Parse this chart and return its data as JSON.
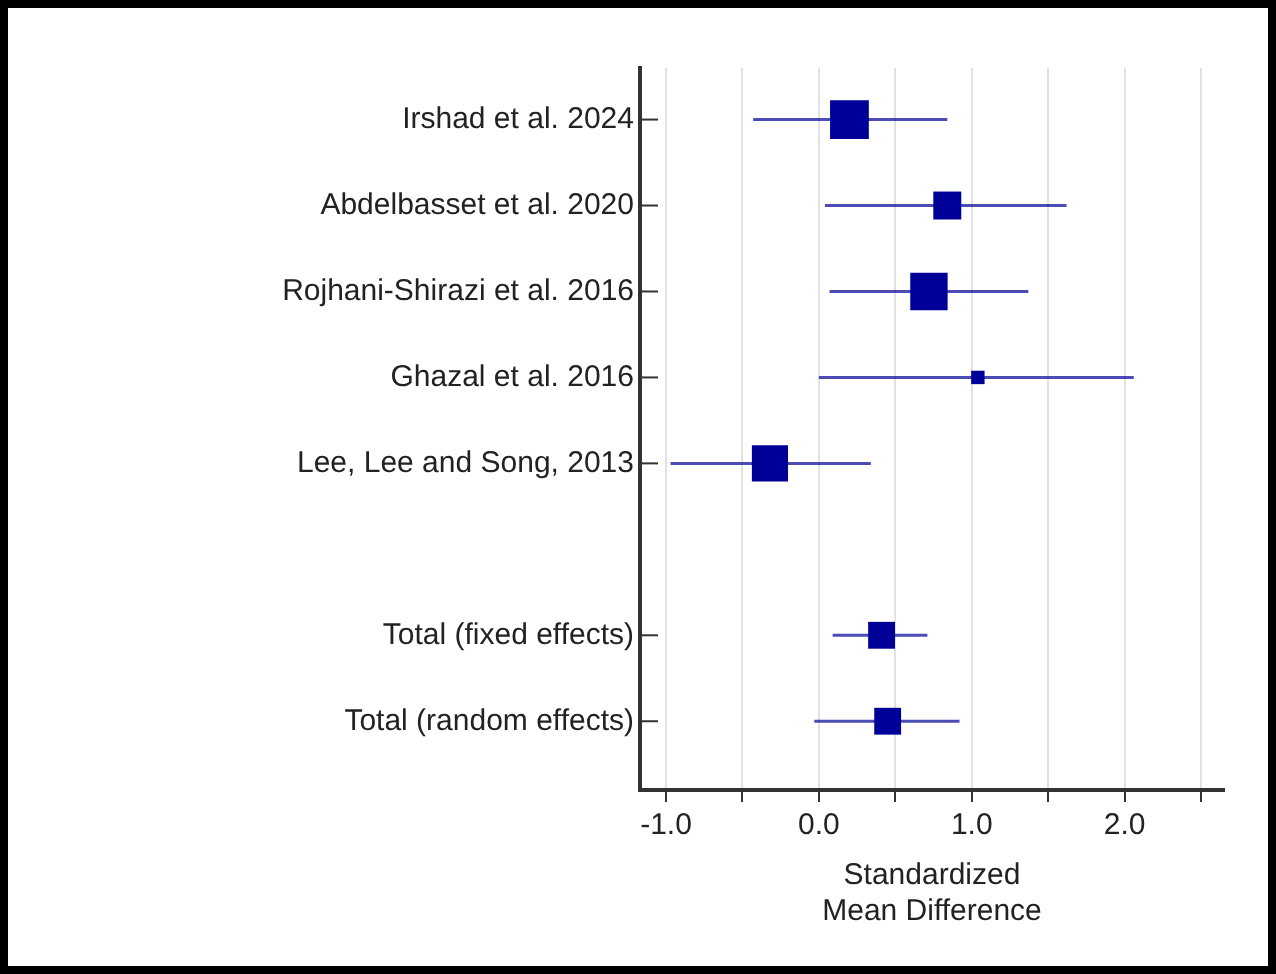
{
  "chart_data": {
    "type": "bubble",
    "orientation": "horizontal",
    "marker": "square",
    "color": "#000099",
    "categories": [
      "Irshad et al. 2024",
      "Abdelbasset et al. 2020",
      "Rojhani-Shirazi et al. 2016",
      "Ghazal et al. 2016",
      "Lee, Lee and Song, 2013",
      null,
      "Total (fixed effects)",
      "Total (random effects)"
    ],
    "values": [
      0.2,
      0.84,
      0.72,
      1.04,
      -0.32,
      null,
      0.41,
      0.45
    ],
    "errors": [
      [
        -0.43,
        0.84
      ],
      [
        0.04,
        1.62
      ],
      [
        0.07,
        1.37
      ],
      [
        0.0,
        2.06
      ],
      [
        -0.97,
        0.34
      ],
      null,
      [
        0.09,
        0.71
      ],
      [
        -0.03,
        0.92
      ]
    ],
    "sizes": [
      1,
      0.52,
      0.93,
      0.12,
      0.87,
      null,
      0.48,
      0.48
    ],
    "xlabel": "Standardized\nMean Difference",
    "xlim": [
      -1.17,
      2.65
    ],
    "xticks": [
      {
        "value": -1,
        "label": "-1.0"
      },
      {
        "value": -0.5,
        "label": null
      },
      {
        "value": 0,
        "label": "0.0"
      },
      {
        "value": 0.5,
        "label": null
      },
      {
        "value": 1,
        "label": "1.0"
      },
      {
        "value": 1.5,
        "label": null
      },
      {
        "value": 2,
        "label": "2.0"
      },
      {
        "value": 2.5,
        "label": null
      }
    ],
    "grid": "x",
    "legend": false
  }
}
